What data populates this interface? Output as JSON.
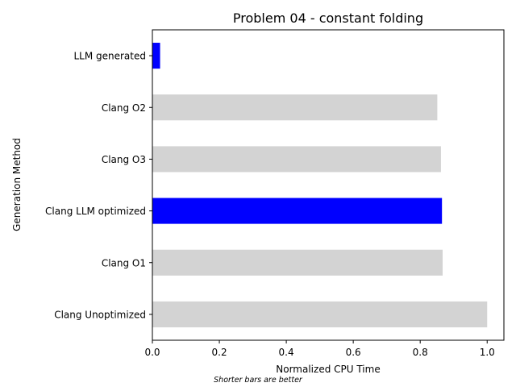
{
  "chart_data": {
    "type": "bar",
    "orientation": "horizontal",
    "title": "Problem 04 - constant folding",
    "xlabel": "Normalized CPU Time",
    "ylabel": "Generation Method",
    "note": "Shorter bars are better",
    "xlim": [
      0,
      1.05
    ],
    "xticks": [
      "0.0",
      "0.2",
      "0.4",
      "0.6",
      "0.8",
      "1.0"
    ],
    "categories": [
      "LLM generated",
      "Clang O2",
      "Clang O3",
      "Clang LLM optimized",
      "Clang O1",
      "Clang Unoptimized"
    ],
    "values": [
      0.023,
      0.851,
      0.862,
      0.865,
      0.867,
      1.0
    ],
    "highlighted": [
      true,
      false,
      false,
      true,
      false,
      false
    ],
    "colors": {
      "highlight": "#0000ff",
      "default": "#d3d3d3",
      "axis": "#000000"
    },
    "grid": false,
    "legend": "none"
  }
}
